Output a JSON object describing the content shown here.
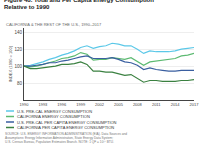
{
  "chart_data": {
    "type": "line",
    "title": "Figure 48. Total and Per Capita Energy Consumption\nRelative to 1990",
    "subtitle": "CALIFORNIA & THE REST OF THE U.S., 1990–2017",
    "ylabel": "INDEX (1990 = 100)",
    "footnote": "SOURCE: U.S. ENERGY INFORMATION ADMINISTRATION (EIA). Data Sources and Assumptions: Energy Information Administration, State Energy Data System;\nU.S. Census Bureau, Population Estimates Branch. NOTE: 1 QF = 10¹⁵ BTU.",
    "x": [
      1990,
      1991,
      1992,
      1993,
      1994,
      1995,
      1996,
      1997,
      1998,
      1999,
      2000,
      2001,
      2002,
      2003,
      2004,
      2005,
      2006,
      2007,
      2008,
      2009,
      2010,
      2011,
      2012,
      2013,
      2014,
      2015,
      2016,
      2017
    ],
    "series": [
      {
        "name": "U.S. PRE-CAL ENERGY CONSUMPTION",
        "color": "#5bc8e8",
        "values": [
          100,
          101,
          103,
          105,
          108,
          110,
          113,
          115,
          118,
          122,
          124,
          121,
          123,
          124,
          127,
          126,
          124,
          124,
          120,
          115,
          118,
          117,
          117,
          117,
          118,
          120,
          121,
          122
        ]
      },
      {
        "name": "CALIFORNIA ENERGY CONSUMPTION",
        "color": "#5dba72",
        "values": [
          100,
          99,
          100,
          102,
          104,
          106,
          109,
          110,
          112,
          116,
          114,
          107,
          108,
          108,
          110,
          109,
          108,
          110,
          106,
          101,
          105,
          106,
          107,
          108,
          109,
          112,
          113,
          115
        ]
      },
      {
        "name": "U.S. PRE-CAL PER CAPITA ENERGY CONSUMPTION",
        "color": "#3a5fa0",
        "values": [
          100,
          100,
          101,
          102,
          104,
          104,
          106,
          107,
          109,
          111,
          112,
          109,
          109,
          109,
          110,
          108,
          105,
          104,
          101,
          96,
          98,
          96,
          95,
          94,
          94,
          95,
          95,
          95
        ]
      },
      {
        "name": "CALIFORNIA PER CAPITA ENERGY CONSUMPTION",
        "color": "#3a8040",
        "values": [
          100,
          97,
          97,
          98,
          99,
          100,
          102,
          102,
          103,
          105,
          102,
          94,
          94,
          93,
          93,
          91,
          89,
          90,
          86,
          81,
          83,
          83,
          82,
          82,
          82,
          83,
          83,
          84
        ]
      }
    ],
    "xlim": [
      1990,
      2017
    ],
    "xticks": [
      1990,
      1993,
      1996,
      1999,
      2002,
      2005,
      2008,
      2011,
      2014,
      2017
    ],
    "ylim": [
      60,
      145
    ],
    "yticks": [
      80,
      100,
      120,
      140
    ],
    "grid": "y"
  }
}
